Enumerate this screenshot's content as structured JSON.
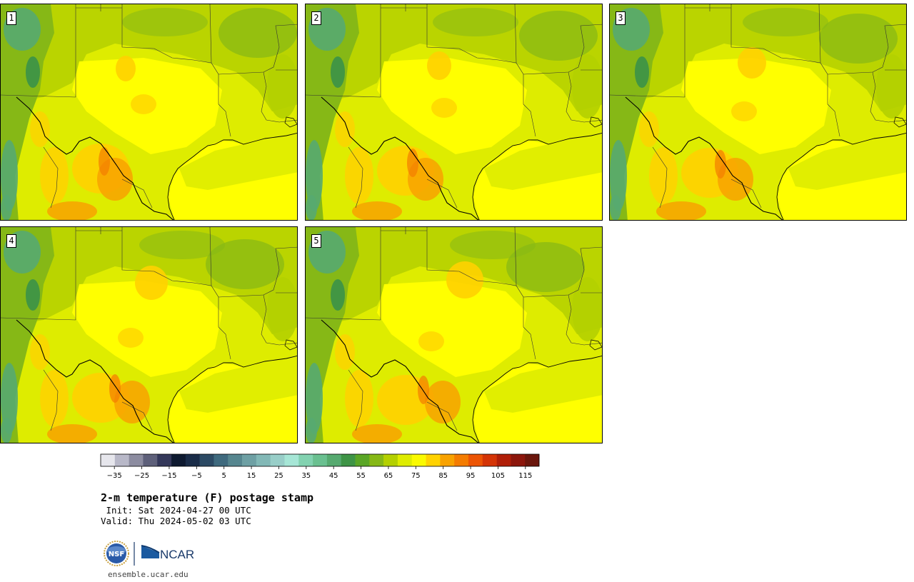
{
  "members": [
    {
      "label": "1"
    },
    {
      "label": "2"
    },
    {
      "label": "3"
    },
    {
      "label": "4"
    },
    {
      "label": "5"
    }
  ],
  "colorbar": {
    "ticks": [
      "−35",
      "−25",
      "−15",
      "−5",
      "5",
      "15",
      "25",
      "35",
      "45",
      "55",
      "65",
      "75",
      "85",
      "95",
      "105",
      "115"
    ],
    "colors": [
      "#e6e6ec",
      "#b8b8c8",
      "#8c8ca0",
      "#5e607a",
      "#34385a",
      "#0e1a30",
      "#1a2c48",
      "#2c4a64",
      "#3f6a7e",
      "#56868f",
      "#6ea0a4",
      "#82b8b6",
      "#98cec8",
      "#a6e6d6",
      "#82d2b0",
      "#6ac090",
      "#56aa70",
      "#3e9446",
      "#5aa626",
      "#86b816",
      "#b4d000",
      "#deec00",
      "#fafa00",
      "#ffd200",
      "#f8a200",
      "#f47c00",
      "#ec5404",
      "#d43406",
      "#b01e08",
      "#8c160c",
      "#6a160c"
    ],
    "range": [
      -40,
      120
    ]
  },
  "title": "2-m temperature (F) postage stamp",
  "init_line": " Init: Sat 2024-04-27 00 UTC",
  "valid_line": "Valid: Thu 2024-05-02 03 UTC",
  "logos": {
    "nsf": "NSF",
    "ncar": "NCAR"
  },
  "website": "ensemble.ucar.edu",
  "palette": {
    "ocean": "#ffff00",
    "warm": "#ffd200",
    "hot": "#f8a200",
    "lime": "#deec00",
    "yellowgreen": "#b4d000",
    "green": "#86b816",
    "dkgreen": "#56aa70",
    "teal": "#3e9446"
  }
}
